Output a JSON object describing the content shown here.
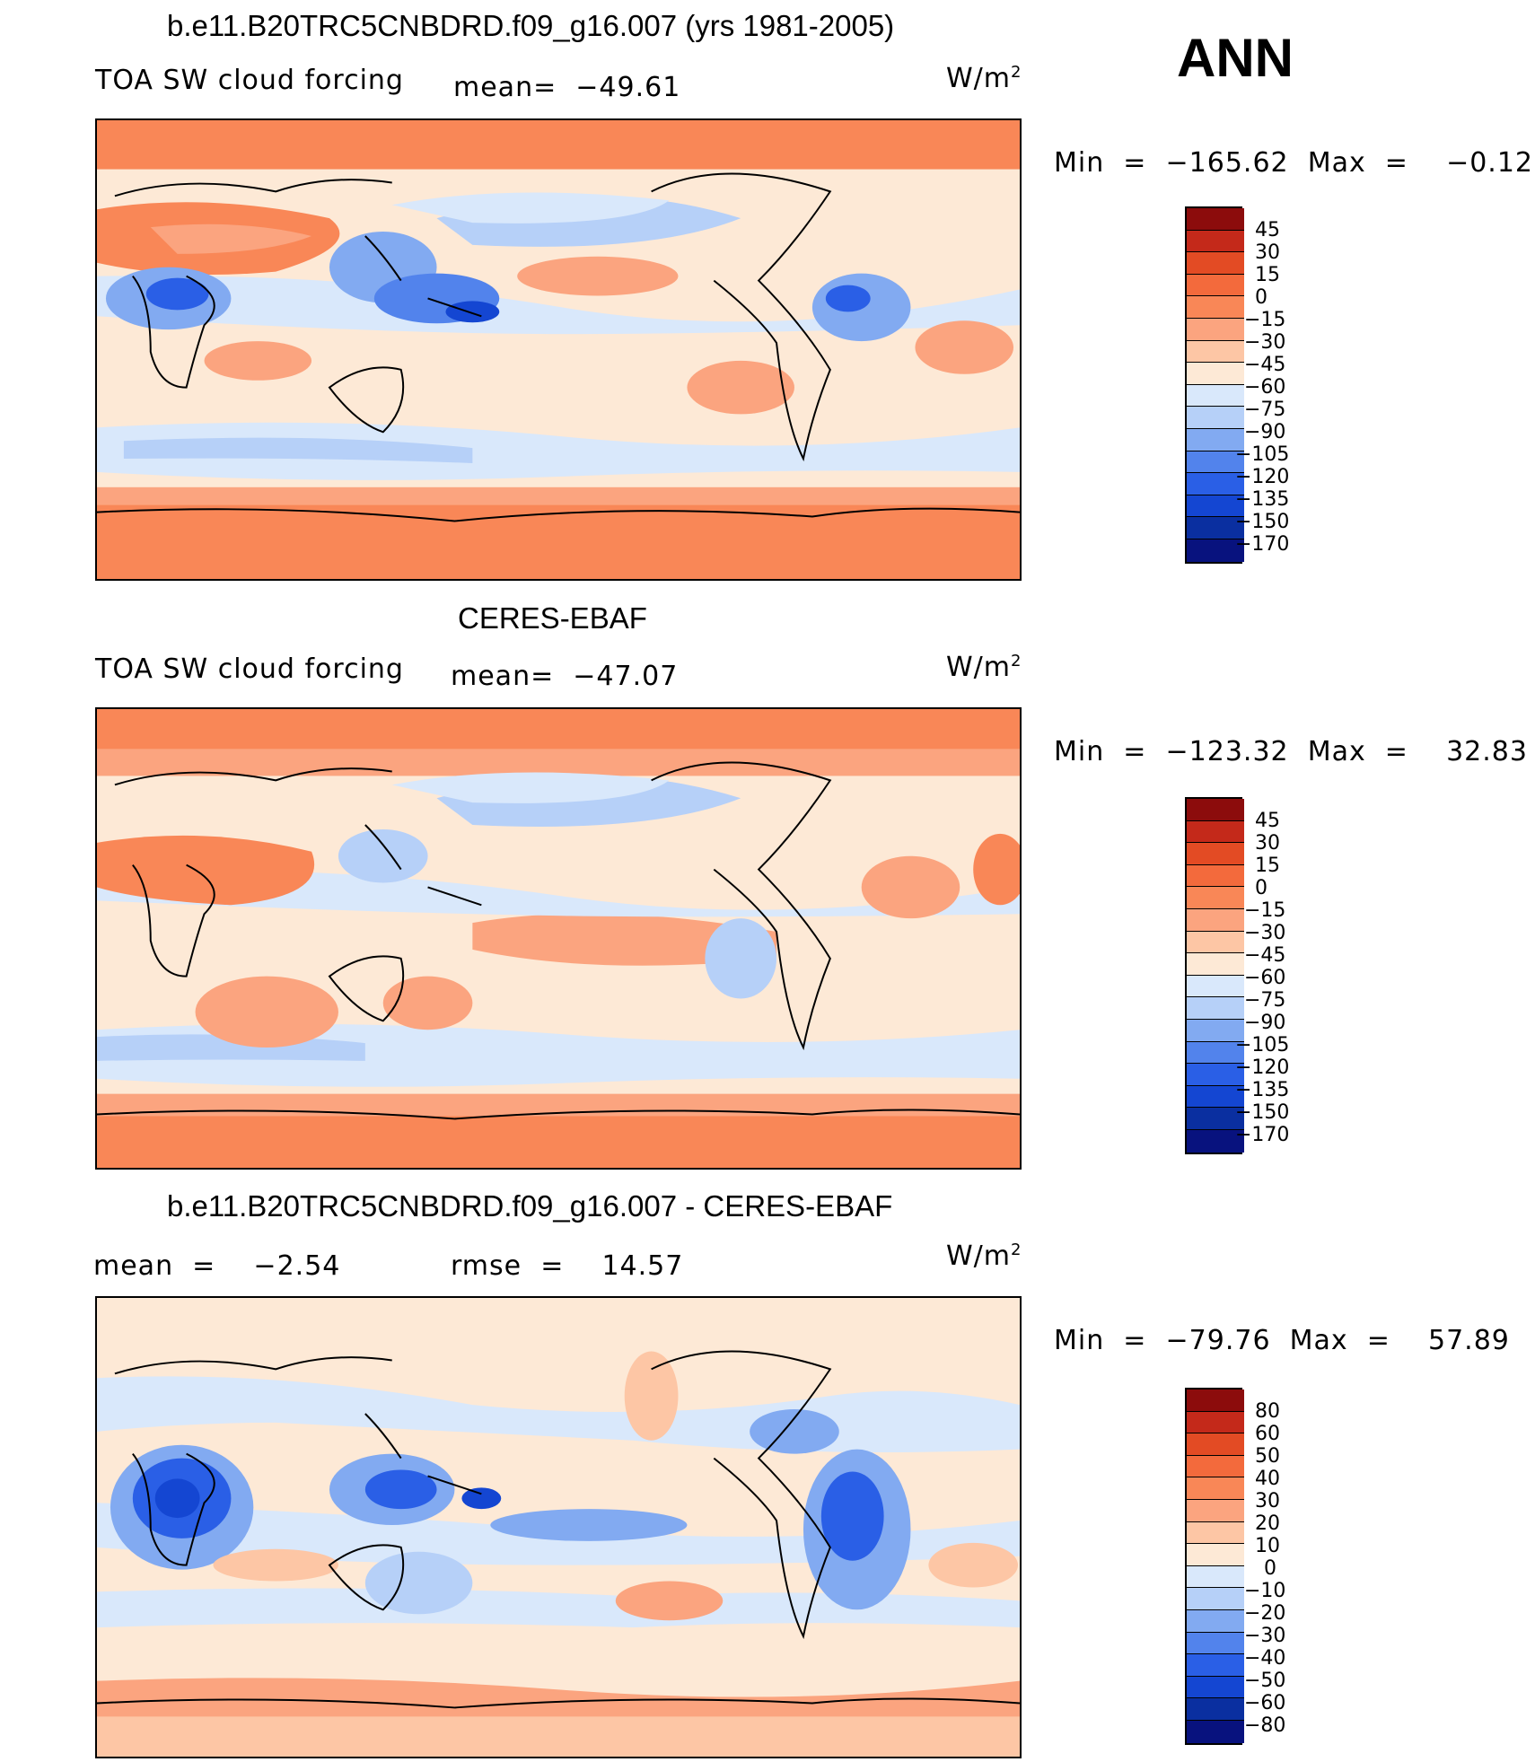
{
  "season": "ANN",
  "colors": {
    "c_n170": "#08127e",
    "c_n150": "#0a2fa0",
    "c_n135": "#1446d2",
    "c_n120": "#2a5fe6",
    "c_n105": "#5283ec",
    "c_n90": "#82aaf1",
    "c_n75": "#b6d0f8",
    "c_n60": "#d9e8fb",
    "c_n45": "#fde9d6",
    "c_n30": "#fdc6a5",
    "c_n15": "#fba47f",
    "c_0": "#f98757",
    "c_15": "#f36a3c",
    "c_30": "#e34b24",
    "c_45": "#c4291a",
    "c_max": "#8c0c0c"
  },
  "panels": [
    {
      "title": "b.e11.B20TRC5CNBDRD.f09_g16.007 (yrs 1981-2005)",
      "left_label": "TOA SW cloud forcing",
      "mean_label": "mean=  −49.61",
      "units": "W/m",
      "units_sup": "2",
      "minmax": "Min  =  −165.62  Max  =    −0.12",
      "levels": [
        "45",
        "30",
        "15",
        "0",
        "−15",
        "−30",
        "−45",
        "−60",
        "−75",
        "−90",
        "−105",
        "−120",
        "−135",
        "−150",
        "−170"
      ]
    },
    {
      "title": "CERES-EBAF",
      "left_label": "TOA SW cloud forcing",
      "mean_label": "mean=  −47.07",
      "units": "W/m",
      "units_sup": "2",
      "minmax": "Min  =  −123.32  Max  =    32.83",
      "levels": [
        "45",
        "30",
        "15",
        "0",
        "−15",
        "−30",
        "−45",
        "−60",
        "−75",
        "−90",
        "−105",
        "−120",
        "−135",
        "−150",
        "−170"
      ]
    },
    {
      "title": "b.e11.B20TRC5CNBDRD.f09_g16.007 - CERES-EBAF",
      "left_label": "mean  =    −2.54",
      "mean_label": "rmse  =    14.57",
      "units": "W/m",
      "units_sup": "2",
      "minmax": "Min  =  −79.76  Max  =    57.89",
      "levels": [
        "80",
        "60",
        "50",
        "40",
        "30",
        "20",
        "10",
        "0",
        "−10",
        "−20",
        "−30",
        "−40",
        "−50",
        "−60",
        "−80"
      ]
    }
  ]
}
